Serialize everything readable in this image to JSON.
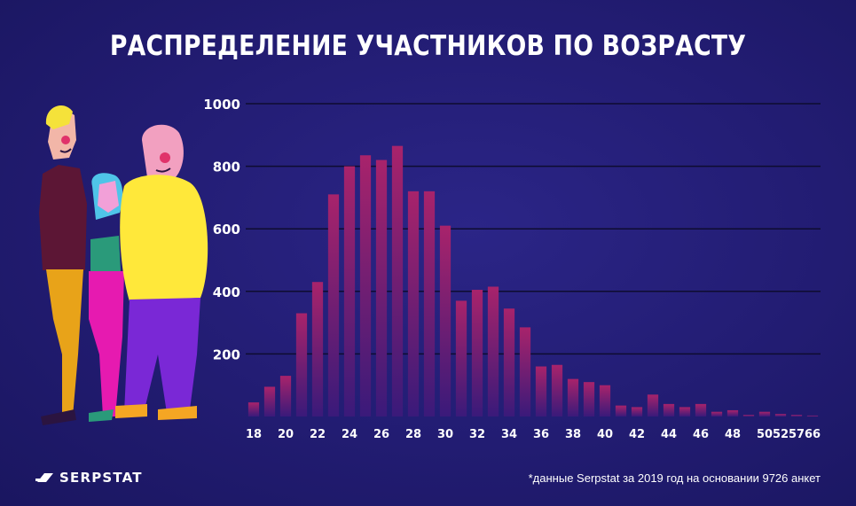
{
  "title": "РАСПРЕДЕЛЕНИЕ УЧАСТНИКОВ ПО ВОЗРАСТУ",
  "logo": {
    "text": "SERPSTAT",
    "icon": "serpstat-logo-icon"
  },
  "footnote": "*данные Serpstat за 2019 год на основании 9726 анкет",
  "colors": {
    "background": "#221c72",
    "bar_top": "#a8236b",
    "bar_bottom": "#3a1a7a",
    "grid": "#0e0c30"
  },
  "chart_data": {
    "type": "bar",
    "title": "РАСПРЕДЕЛЕНИЕ УЧАСТНИКОВ ПО ВОЗРАСТУ",
    "xlabel": "",
    "ylabel": "",
    "ylim": [
      0,
      1000
    ],
    "yticks": [
      200,
      400,
      600,
      800,
      1000
    ],
    "grid": true,
    "categories": [
      "18",
      "19",
      "20",
      "21",
      "22",
      "23",
      "24",
      "25",
      "26",
      "27",
      "28",
      "29",
      "30",
      "31",
      "32",
      "33",
      "34",
      "35",
      "36",
      "37",
      "38",
      "39",
      "40",
      "41",
      "42",
      "43",
      "44",
      "45",
      "46",
      "47",
      "48",
      "49",
      "50",
      "52",
      "57",
      "66"
    ],
    "values": [
      45,
      95,
      130,
      330,
      430,
      710,
      800,
      835,
      820,
      865,
      720,
      720,
      610,
      370,
      405,
      415,
      345,
      285,
      160,
      165,
      120,
      110,
      100,
      35,
      30,
      70,
      40,
      30,
      40,
      15,
      20,
      5,
      15,
      8,
      5,
      3
    ],
    "x_tick_labels": [
      "18",
      "20",
      "22",
      "24",
      "26",
      "28",
      "30",
      "32",
      "34",
      "36",
      "38",
      "40",
      "42",
      "44",
      "46",
      "48",
      "50",
      "52",
      "57",
      "66"
    ],
    "x_tick_indices": [
      0,
      2,
      4,
      6,
      8,
      10,
      12,
      14,
      16,
      18,
      20,
      22,
      24,
      26,
      28,
      30,
      32,
      33,
      34,
      35
    ]
  }
}
